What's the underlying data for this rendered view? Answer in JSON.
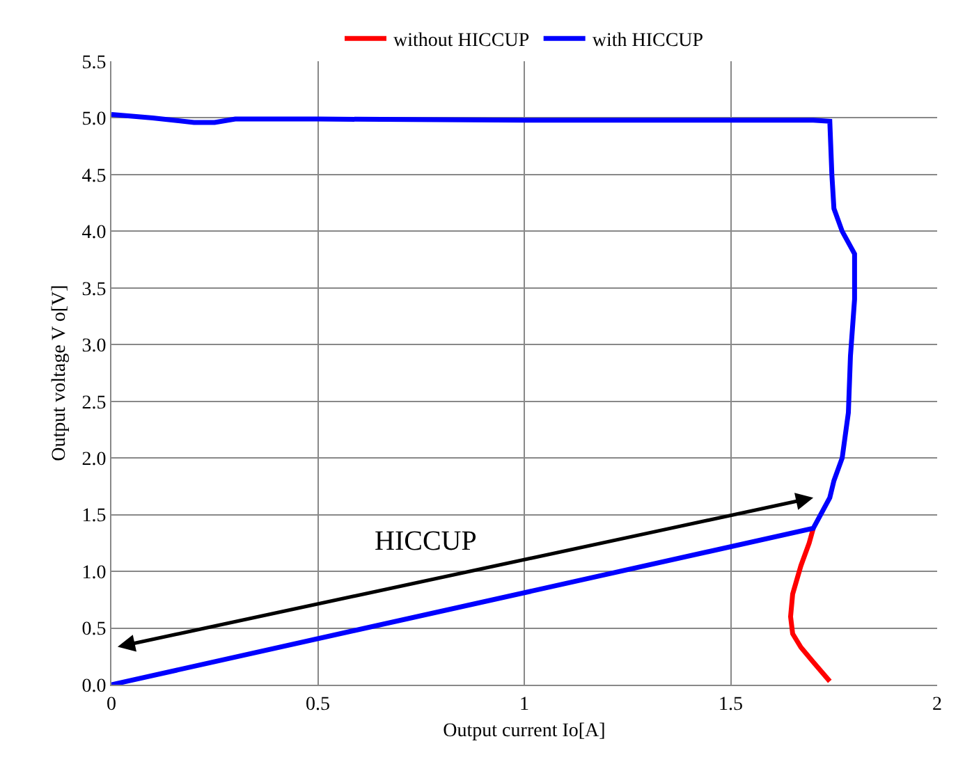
{
  "chart_data": {
    "type": "line",
    "xlabel": "Output current Io[A]",
    "ylabel": "Output voltage V o[V]",
    "series": [
      {
        "name": "without HICCUP",
        "color": "#ff0000",
        "x": [
          1.7,
          1.69,
          1.67,
          1.65,
          1.645,
          1.65,
          1.67,
          1.7,
          1.74
        ],
        "values": [
          1.38,
          1.25,
          1.05,
          0.8,
          0.6,
          0.45,
          0.33,
          0.2,
          0.03
        ]
      },
      {
        "name": "with HICCUP",
        "color": "#0000ff",
        "x": [
          0,
          0.1,
          0.2,
          0.25,
          0.3,
          0.5,
          1.0,
          1.5,
          1.7,
          1.74,
          1.745,
          1.75,
          1.77,
          1.8,
          1.8,
          1.79,
          1.785,
          1.77,
          1.75,
          1.74,
          1.7,
          0
        ],
        "values": [
          5.03,
          5.0,
          4.96,
          4.96,
          4.99,
          4.99,
          4.98,
          4.98,
          4.98,
          4.97,
          4.5,
          4.2,
          4.0,
          3.8,
          3.4,
          2.9,
          2.4,
          2.0,
          1.8,
          1.65,
          1.38,
          0
        ]
      }
    ],
    "xlim": [
      0,
      2
    ],
    "xticks": [
      0,
      0.5,
      1,
      1.5,
      2
    ],
    "ylim": [
      0,
      5.5
    ],
    "yticks": [
      {
        "value": 0,
        "label": "0.0"
      },
      {
        "value": 0.5,
        "label": "0.5"
      },
      {
        "value": 1,
        "label": "1.0"
      },
      {
        "value": 1.5,
        "label": "1.5"
      },
      {
        "value": 2,
        "label": "2.0"
      },
      {
        "value": 2.5,
        "label": "2.5"
      },
      {
        "value": 3,
        "label": "3.0"
      },
      {
        "value": 3.5,
        "label": "3.5"
      },
      {
        "value": 4,
        "label": "4.0"
      },
      {
        "value": 4.5,
        "label": "4.5"
      },
      {
        "value": 5,
        "label": "5.0"
      },
      {
        "value": 5.5,
        "label": "5.5"
      }
    ],
    "grid": true,
    "legend": "top",
    "marker": "none",
    "line_style": "solid",
    "annotations": [
      "HICCUP"
    ]
  }
}
